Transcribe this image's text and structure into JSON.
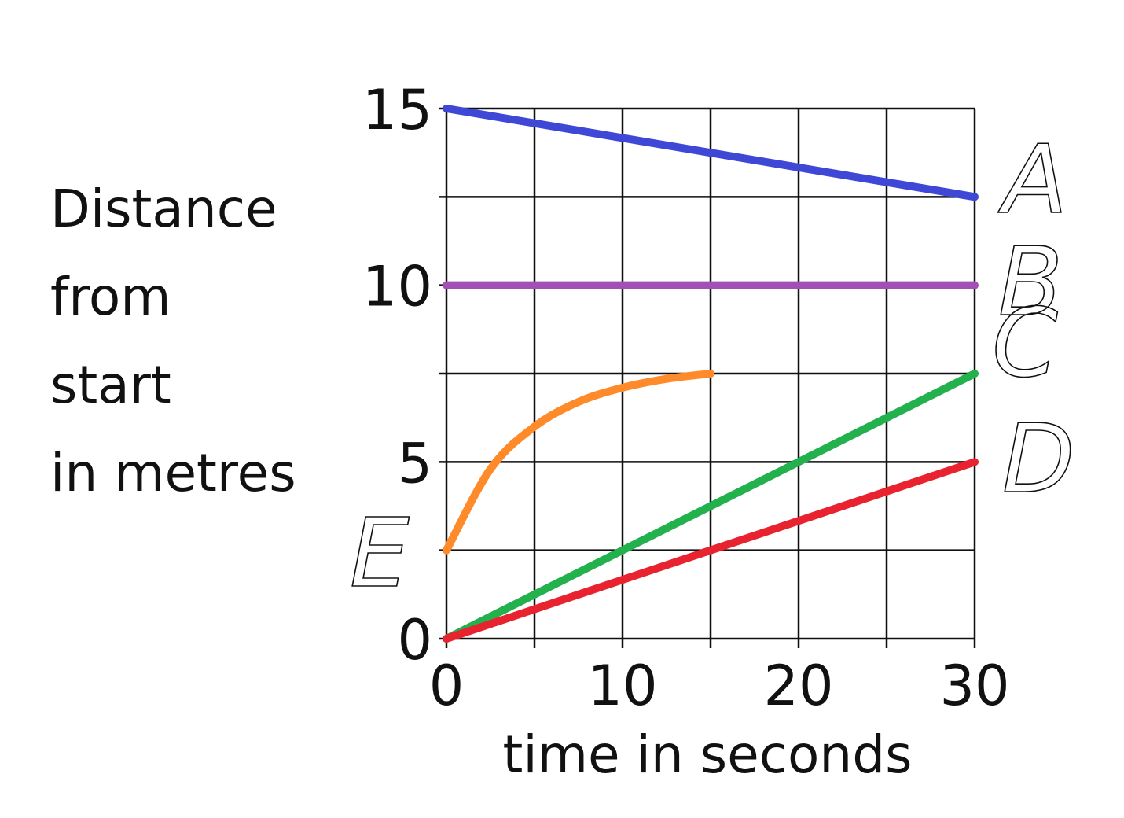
{
  "chart_data": {
    "type": "line",
    "title": "",
    "ylabel_lines": [
      "Distance",
      "from",
      "start",
      "in metres"
    ],
    "xlabel": "time in seconds",
    "xlim": [
      0,
      30
    ],
    "ylim": [
      0,
      15
    ],
    "x_ticks": [
      {
        "value": 0,
        "label": "0"
      },
      {
        "value": 10,
        "label": "10"
      },
      {
        "value": 20,
        "label": "20"
      },
      {
        "value": 30,
        "label": "30"
      }
    ],
    "y_ticks": [
      {
        "value": 0,
        "label": "0"
      },
      {
        "value": 5,
        "label": "5"
      },
      {
        "value": 10,
        "label": "10"
      },
      {
        "value": 15,
        "label": "15"
      }
    ],
    "grid": true,
    "grid_x_step": 5,
    "grid_y_step": 2.5,
    "series": [
      {
        "name": "A",
        "color": "#3f48d6",
        "x": [
          0,
          30
        ],
        "y": [
          15,
          12.5
        ]
      },
      {
        "name": "B",
        "color": "#a24fb8",
        "x": [
          0,
          30
        ],
        "y": [
          10,
          10
        ]
      },
      {
        "name": "C",
        "color": "#22b14c",
        "x": [
          0,
          30
        ],
        "y": [
          0,
          7.5
        ]
      },
      {
        "name": "D",
        "color": "#e8222e",
        "x": [
          0,
          30
        ],
        "y": [
          0,
          5
        ]
      },
      {
        "name": "E",
        "color": "#ff8a2a",
        "x": [
          0,
          2.5,
          5,
          7.5,
          10,
          12.5,
          15
        ],
        "y": [
          2.5,
          4.8,
          6.0,
          6.7,
          7.1,
          7.35,
          7.5
        ]
      }
    ]
  }
}
